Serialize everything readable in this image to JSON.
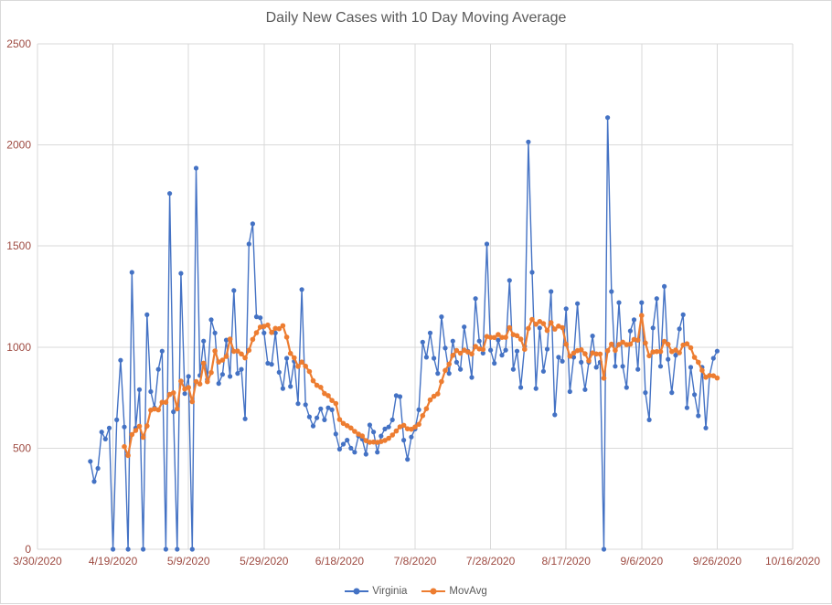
{
  "colors": {
    "virginia_series": "#4472C4",
    "movavg_series": "#ED7D31",
    "axis_label": "#9E4B42",
    "title_text": "#595959",
    "gridline": "#D9D9D9"
  },
  "legend": {
    "position": "bottom",
    "entries": [
      "Virginia",
      "MovAvg"
    ]
  },
  "chart_data": {
    "type": "line",
    "title": "Daily New Cases with 10 Day Moving Average",
    "xlabel": "",
    "ylabel": "",
    "grid": true,
    "x_axis": {
      "tick_labels": [
        "3/30/2020",
        "4/19/2020",
        "5/9/2020",
        "5/29/2020",
        "6/18/2020",
        "7/8/2020",
        "7/28/2020",
        "8/17/2020",
        "9/6/2020",
        "9/26/2020",
        "10/16/2020"
      ],
      "total_days": 200,
      "data_start_offset_days": 14,
      "data_first_date": "4/13/2020",
      "data_last_date": "9/26/2020",
      "frequency": "daily"
    },
    "y_axis": {
      "min": 0,
      "max": 2500,
      "step": 500,
      "tick_labels": [
        0,
        500,
        1000,
        1500,
        2000,
        2500
      ]
    },
    "series": [
      {
        "name": "Virginia",
        "color": "#4472C4",
        "values": [
          435,
          335,
          400,
          580,
          545,
          600,
          0,
          640,
          935,
          605,
          0,
          1370,
          600,
          790,
          0,
          1160,
          780,
          700,
          890,
          980,
          0,
          1760,
          680,
          0,
          1365,
          770,
          855,
          0,
          1885,
          860,
          1030,
          840,
          1135,
          1070,
          820,
          865,
          1035,
          855,
          1280,
          870,
          890,
          645,
          1510,
          1610,
          1150,
          1145,
          1070,
          920,
          915,
          1070,
          875,
          795,
          945,
          805,
          930,
          720,
          1285,
          715,
          655,
          610,
          650,
          695,
          640,
          700,
          690,
          570,
          495,
          520,
          540,
          500,
          480,
          560,
          545,
          470,
          615,
          580,
          480,
          560,
          595,
          605,
          640,
          760,
          755,
          540,
          445,
          555,
          595,
          690,
          1025,
          950,
          1070,
          945,
          870,
          1150,
          995,
          870,
          1030,
          925,
          890,
          1100,
          980,
          850,
          1240,
          1030,
          970,
          1510,
          985,
          920,
          1035,
          960,
          985,
          1330,
          890,
          980,
          800,
          1005,
          2015,
          1370,
          795,
          1095,
          880,
          990,
          1275,
          665,
          950,
          930,
          1190,
          780,
          950,
          1215,
          925,
          790,
          925,
          1055,
          900,
          925,
          0,
          2135,
          1275,
          905,
          1220,
          905,
          800,
          1080,
          1135,
          890,
          1220,
          775,
          640,
          1095,
          1240,
          905,
          1300,
          940,
          775,
          960,
          1090,
          1160,
          700,
          900,
          765,
          660,
          900,
          600,
          860,
          945,
          980
        ]
      },
      {
        "name": "MovAvg",
        "color": "#ED7D31",
        "derived_from": "Virginia",
        "derivation": "10-day trailing moving average",
        "window": 10
      }
    ]
  }
}
